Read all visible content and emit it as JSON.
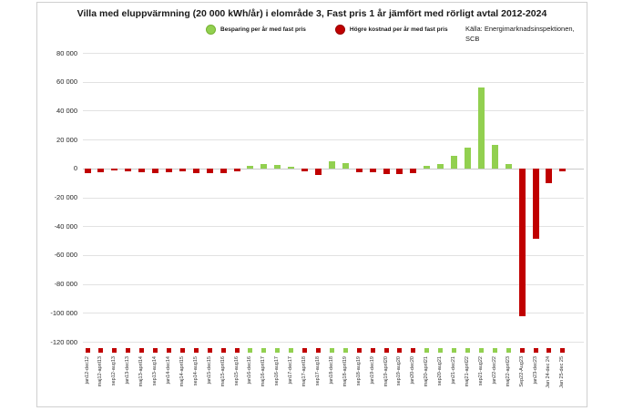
{
  "chart_data": {
    "type": "bar",
    "title": "Villa med eluppvärmning (20 000 kWh/år) i elområde 3, Fast pris 1 år jämfört med rörligt avtal 2012-2024",
    "source_line1": "Källa: Energimarknadsinspektionen,",
    "source_line2": "SCB",
    "legend": [
      {
        "label": "Besparing per år med fast pris",
        "color": "#92d050"
      },
      {
        "label": "Högre kostnad per år med fast pris",
        "color": "#c00000"
      }
    ],
    "legend_position": "top",
    "grid": true,
    "xlabel": "",
    "ylabel": "",
    "ylim": [
      -120000,
      80000
    ],
    "ytick_interval": 20000,
    "ytick_labels": [
      "80 000",
      "60 000",
      "40 000",
      "20 000",
      "0",
      "-20 000",
      "-40 000",
      "-60 000",
      "-80 000",
      "-100 000",
      "-120 000"
    ],
    "bar_colors": {
      "positive": "#92d050",
      "negative": "#c00000"
    },
    "categories": [
      "jan12-dec12",
      "maj12-april13",
      "sep12-aug13",
      "jan13-dec13",
      "maj13-april14",
      "sep13-aug14",
      "jan14-dec14",
      "maj14-april15",
      "sep14-aug15",
      "jan15-dec15",
      "maj15-april16",
      "sep15-aug16",
      "jan16-dec16",
      "maj16-april17",
      "sep16-aug17",
      "jan17-dec17",
      "maj17-april18",
      "sep17-aug18",
      "jan18-dec18",
      "maj18-april19",
      "sep18-aug19",
      "jan19-dec19",
      "maj19-april20",
      "sep19-aug20",
      "jan20-dec20",
      "maj20-april21",
      "sep20-aug21",
      "jan21-dec21",
      "maj21-april22",
      "sep21-aug22",
      "jan22-dec22",
      "maj22-april23",
      "Sep22-Aug23",
      "jan23-dec23",
      "Jan 24-dec 24",
      "Jan 25-dec 25"
    ],
    "values": [
      -3000,
      -2500,
      -1200,
      -2000,
      -2500,
      -3000,
      -2500,
      -2000,
      -3200,
      -3500,
      -3400,
      -2000,
      2000,
      2900,
      2500,
      1200,
      -1800,
      -4800,
      4900,
      3500,
      -2600,
      -2800,
      -4000,
      -3800,
      -3200,
      1900,
      2900,
      8800,
      14500,
      55800,
      16000,
      3100,
      -102500,
      -49000,
      -10300,
      -2000
    ]
  }
}
